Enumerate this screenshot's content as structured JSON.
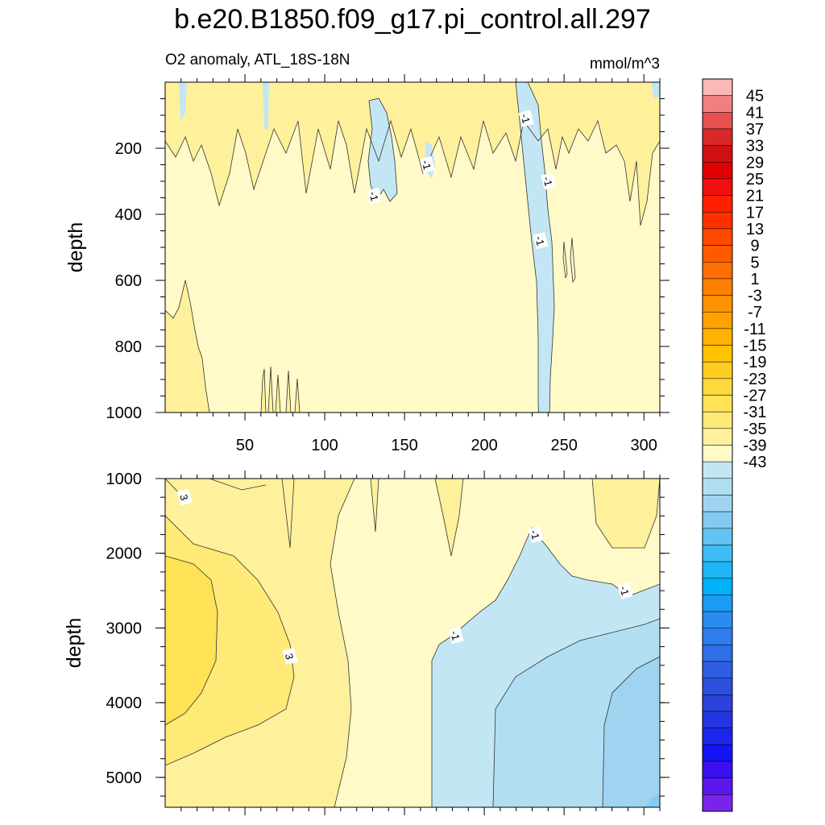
{
  "chart_data": {
    "type": "heatmap",
    "title": "b.e20.B1850.f09_g17.pi_control.all.297",
    "subtitle_left": "O2 anomaly, ATL_18S-18N",
    "subtitle_right": "mmol/m^3",
    "xlabel": "",
    "ylabel": "depth",
    "xlim": [
      0,
      310
    ],
    "x_ticks": [
      50,
      100,
      150,
      200,
      250,
      300
    ],
    "panels": [
      {
        "name": "upper",
        "ylim": [
          0,
          1000
        ],
        "y_ticks": [
          200,
          400,
          600,
          800,
          1000
        ],
        "contour_labels": [
          {
            "text": "-1",
            "x": 131,
            "y": 345
          },
          {
            "text": "-1",
            "x": 164,
            "y": 250
          },
          {
            "text": "-1",
            "x": 226,
            "y": 110
          },
          {
            "text": "-1",
            "x": 240,
            "y": 300
          },
          {
            "text": "-1",
            "x": 235,
            "y": 480
          }
        ]
      },
      {
        "name": "lower",
        "ylim": [
          1000,
          5400
        ],
        "y_ticks": [
          1000,
          2000,
          3000,
          4000,
          5000
        ],
        "contour_labels": [
          {
            "text": "3",
            "x": 12,
            "y": 1250
          },
          {
            "text": "3",
            "x": 78,
            "y": 3380
          },
          {
            "text": "-1",
            "x": 232,
            "y": 1750
          },
          {
            "text": "-1",
            "x": 182,
            "y": 3100
          },
          {
            "text": "-1",
            "x": 288,
            "y": 2500
          }
        ]
      }
    ],
    "colorbar": {
      "labels": [
        "45",
        "41",
        "37",
        "33",
        "29",
        "25",
        "21",
        "17",
        "13",
        "9",
        "5",
        "1",
        "-3",
        "-7",
        "-11",
        "-15",
        "-19",
        "-23",
        "-27",
        "-31",
        "-35",
        "-39",
        "-43"
      ],
      "colors": [
        "#fbb6b6",
        "#f08080",
        "#e85050",
        "#d82828",
        "#cf1010",
        "#e00000",
        "#f01010",
        "#ff2000",
        "#ff3000",
        "#ff4a00",
        "#ff5a00",
        "#ff6e00",
        "#ff8000",
        "#ff9200",
        "#ffa200",
        "#ffb200",
        "#ffc200",
        "#ffcd22",
        "#ffd83c",
        "#ffe255",
        "#ffea78",
        "#fff19c",
        "#fffac8",
        "#c3e6f4",
        "#b2def2",
        "#9fd4f0",
        "#84cbf1",
        "#62c2f1",
        "#40bcf4",
        "#1eb6f6",
        "#00b0f8",
        "#1a9cf3",
        "#2a8cf0",
        "#2f7ded",
        "#2f6ee8",
        "#2f5ee2",
        "#2c4fdd",
        "#2a42da",
        "#2434df",
        "#1c26ea",
        "#1414f4",
        "#3a10f0",
        "#5a18ec",
        "#7a24ea"
      ]
    }
  }
}
